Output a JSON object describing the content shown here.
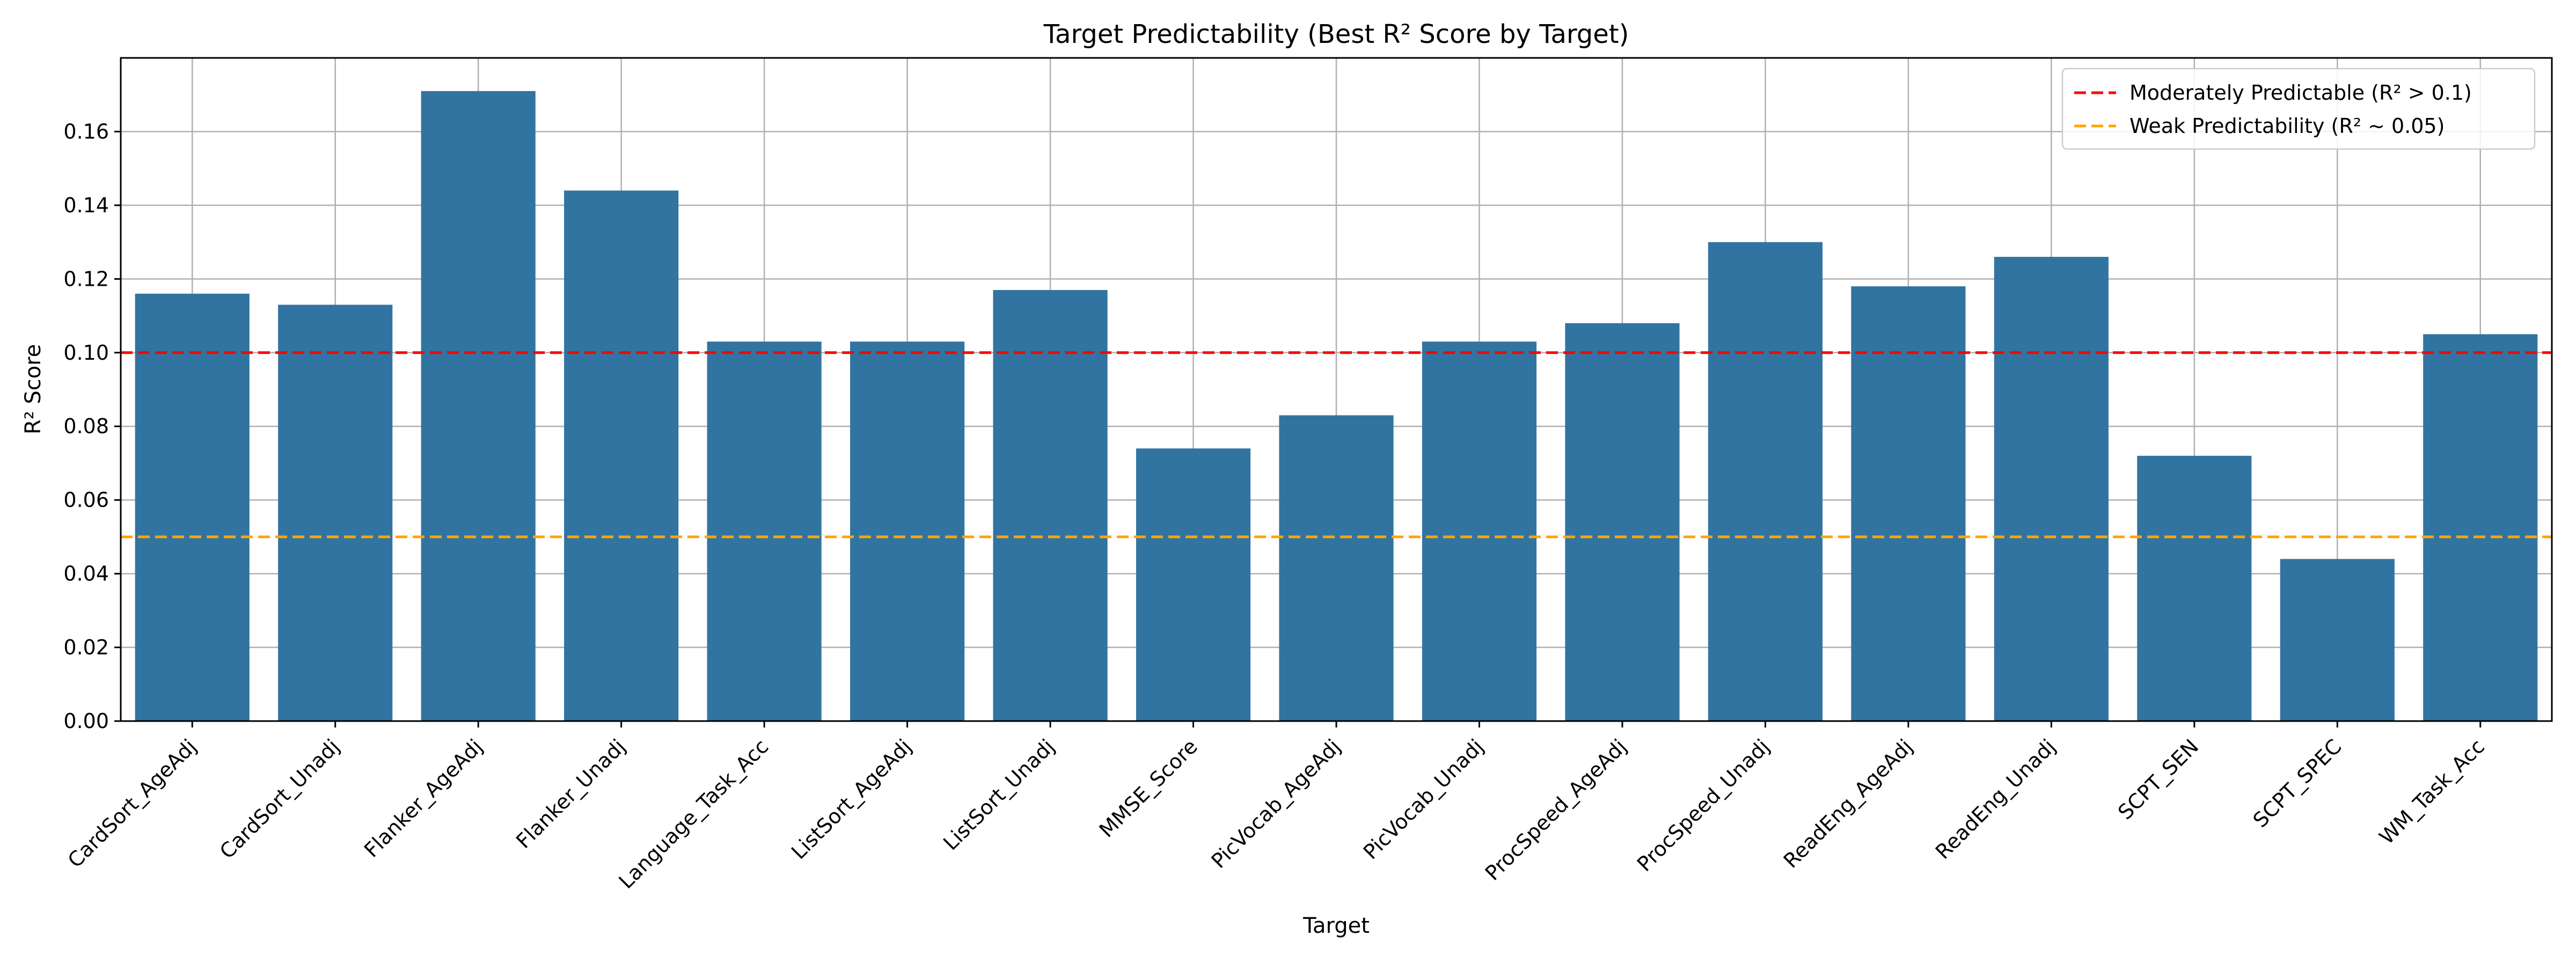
{
  "chart_data": {
    "type": "bar",
    "title": "Target Predictability (Best R² Score by Target)",
    "xlabel": "Target",
    "ylabel": "R² Score",
    "ylim": [
      0,
      0.18
    ],
    "yticks": [
      0.0,
      0.02,
      0.04,
      0.06,
      0.08,
      0.1,
      0.12,
      0.14,
      0.16
    ],
    "grid": true,
    "bar_color": "#3274a1",
    "categories": [
      "CardSort_AgeAdj",
      "CardSort_Unadj",
      "Flanker_AgeAdj",
      "Flanker_Unadj",
      "Language_Task_Acc",
      "ListSort_AgeAdj",
      "ListSort_Unadj",
      "MMSE_Score",
      "PicVocab_AgeAdj",
      "PicVocab_Unadj",
      "ProcSpeed_AgeAdj",
      "ProcSpeed_Unadj",
      "ReadEng_AgeAdj",
      "ReadEng_Unadj",
      "SCPT_SEN",
      "SCPT_SPEC",
      "WM_Task_Acc"
    ],
    "values": [
      0.116,
      0.113,
      0.171,
      0.144,
      0.103,
      0.103,
      0.117,
      0.074,
      0.083,
      0.103,
      0.108,
      0.13,
      0.118,
      0.126,
      0.072,
      0.044,
      0.105
    ],
    "reference_lines": [
      {
        "label": "Moderately Predictable (R² > 0.1)",
        "y": 0.1,
        "color": "#ff0000",
        "style": "dashed"
      },
      {
        "label": "Weak Predictability (R² ~ 0.05)",
        "y": 0.05,
        "color": "#ffa500",
        "style": "dashed"
      }
    ],
    "legend_position": "top-right"
  }
}
